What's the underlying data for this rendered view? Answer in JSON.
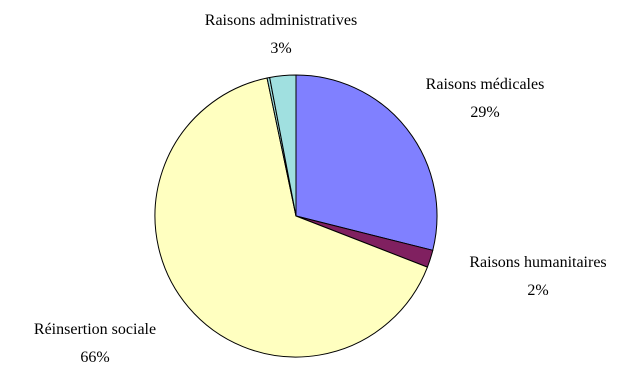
{
  "chart_data": {
    "type": "pie",
    "slices": [
      {
        "label": "Raisons médicales",
        "value": 29,
        "value_label": "29%",
        "color": "#8080ff"
      },
      {
        "label": "Raisons humanitaires",
        "value": 2,
        "value_label": "2%",
        "color": "#802060"
      },
      {
        "label": "Réinsertion sociale",
        "value": 66,
        "value_label": "66%",
        "color": "#ffffc0"
      },
      {
        "label": "",
        "value": 0.3,
        "value_label": "",
        "color": "#a0e0e0"
      },
      {
        "label": "Raisons administratives",
        "value": 3,
        "value_label": "3%",
        "color": "#a0e0e0"
      }
    ],
    "start": "top",
    "direction": "clockwise",
    "legend": "none"
  }
}
